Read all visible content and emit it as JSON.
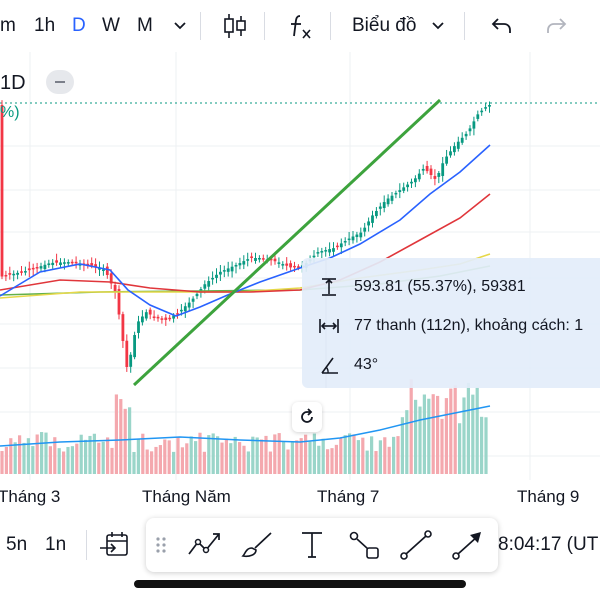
{
  "toolbar": {
    "intervals": [
      {
        "label": "m",
        "active": false
      },
      {
        "label": "1h",
        "active": false
      },
      {
        "label": "D",
        "active": true
      },
      {
        "label": "W",
        "active": false
      },
      {
        "label": "M",
        "active": false
      }
    ],
    "interval_dropdown_icon": "chevron-down-icon",
    "chart_type_icon": "candles-icon",
    "indicators_icon": "fx-icon",
    "layout_label": "Biểu đồ",
    "undo_icon": "undo-icon",
    "redo_icon": "redo-icon"
  },
  "header": {
    "symbol": "1D",
    "change_suffix": "%)",
    "collapse_icon": "minus-icon"
  },
  "measure_tooltip": {
    "price_change": "593.81 (55.37%), 59381",
    "bars_range": "77 thanh (112n), khoảng cách: 1",
    "angle": "43°"
  },
  "reset_icon": "rotate-icon",
  "x_axis": [
    "Tháng 3",
    "Tháng Năm",
    "Tháng 7",
    "Tháng 9"
  ],
  "bottom": {
    "ranges": [
      "5n",
      "1n"
    ],
    "goto_date_icon": "calendar-arrow-icon",
    "time": "8:04:17 (UT"
  },
  "drawing_tools": [
    "grip-icon",
    "trend-lines-icon",
    "brush-icon",
    "text-icon",
    "shapes-icon",
    "line-icon",
    "arrow-icon"
  ],
  "colors": {
    "accent": "#2962ff",
    "up": "#089981",
    "down": "#f23645",
    "trend": "#3da33d",
    "ma_fast": "#2962ff",
    "ma_mid": "#e0363b",
    "ma_slow": "#e6d84a",
    "ma_slowest": "#62b04a"
  }
}
